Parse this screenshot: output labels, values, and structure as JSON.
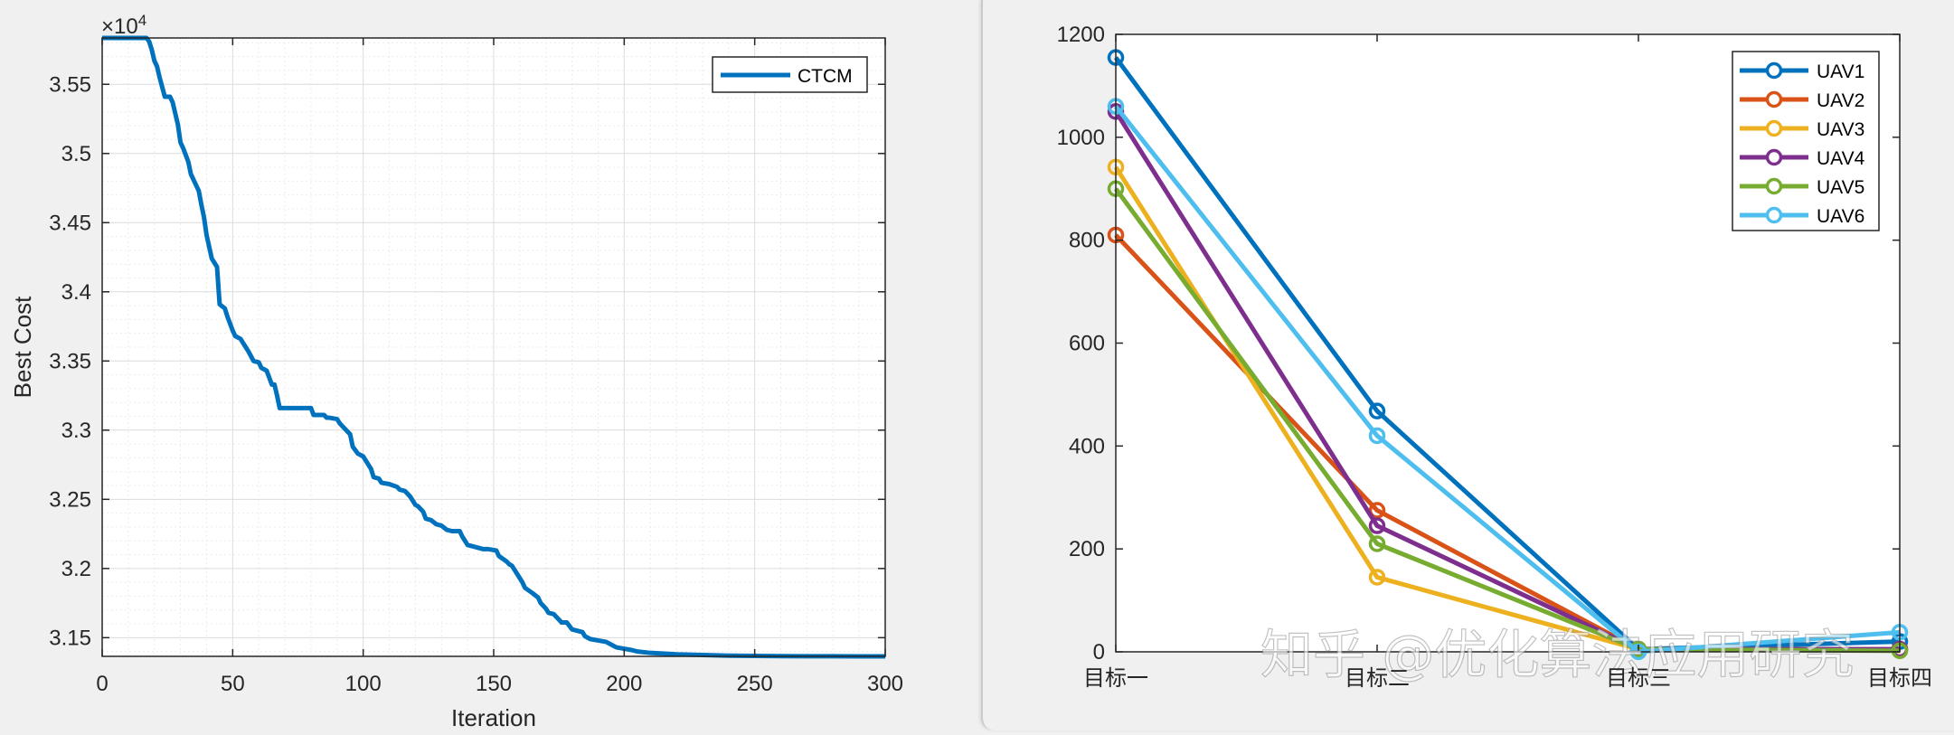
{
  "chart_data": [
    {
      "type": "line",
      "title": "",
      "xlabel": "Iteration",
      "ylabel": "Best Cost",
      "y_exponent_label": "×10",
      "y_exponent_power": "4",
      "xlim": [
        0,
        300
      ],
      "ylim": [
        3.1365,
        3.5835
      ],
      "x_ticks": [
        0,
        50,
        100,
        150,
        200,
        250,
        300
      ],
      "x_tick_labels": [
        "0",
        "50",
        "100",
        "150",
        "200",
        "250",
        "300"
      ],
      "y_ticks": [
        3.15,
        3.2,
        3.25,
        3.3,
        3.35,
        3.4,
        3.45,
        3.5,
        3.55
      ],
      "y_tick_labels": [
        "3.15",
        "3.2",
        "3.25",
        "3.3",
        "3.35",
        "3.4",
        "3.45",
        "3.5",
        "3.55"
      ],
      "grid": true,
      "minor_grid": true,
      "legend_position": "top-right",
      "series": [
        {
          "name": "CTCM",
          "color": "#0072BD",
          "x": [
            0,
            17,
            18,
            19,
            20,
            21,
            22,
            23,
            24,
            26,
            27,
            29,
            30,
            31,
            33,
            34,
            36,
            37,
            38,
            39,
            40,
            42,
            44,
            45,
            47,
            48,
            50,
            51,
            53,
            55,
            56,
            58,
            60,
            61,
            63,
            64,
            65,
            66,
            67,
            68,
            72,
            75,
            80,
            81,
            85,
            86,
            87,
            90,
            91,
            93,
            95,
            96,
            98,
            100,
            101,
            103,
            104,
            106,
            107,
            110,
            113,
            114,
            116,
            118,
            120,
            121,
            123,
            124,
            126,
            128,
            130,
            132,
            134,
            137,
            138,
            140,
            142,
            146,
            148,
            151,
            152,
            155,
            156,
            157,
            159,
            161,
            162,
            165,
            167,
            168,
            170,
            171,
            173,
            175,
            176,
            178,
            180,
            184,
            185,
            187,
            190,
            193,
            194,
            197,
            200,
            203,
            205,
            210,
            220,
            230,
            240,
            250,
            260,
            270,
            280,
            290,
            300
          ],
          "y": [
            3.5835,
            3.5835,
            3.581,
            3.575,
            3.567,
            3.563,
            3.555,
            3.548,
            3.541,
            3.541,
            3.537,
            3.521,
            3.508,
            3.504,
            3.494,
            3.485,
            3.477,
            3.473,
            3.463,
            3.454,
            3.441,
            3.424,
            3.418,
            3.391,
            3.388,
            3.382,
            3.372,
            3.368,
            3.366,
            3.36,
            3.357,
            3.35,
            3.349,
            3.345,
            3.343,
            3.338,
            3.333,
            3.333,
            3.325,
            3.316,
            3.316,
            3.316,
            3.316,
            3.311,
            3.311,
            3.309,
            3.309,
            3.308,
            3.305,
            3.301,
            3.297,
            3.288,
            3.283,
            3.281,
            3.278,
            3.272,
            3.266,
            3.265,
            3.262,
            3.261,
            3.259,
            3.257,
            3.256,
            3.252,
            3.246,
            3.245,
            3.241,
            3.236,
            3.235,
            3.232,
            3.231,
            3.228,
            3.227,
            3.227,
            3.223,
            3.217,
            3.216,
            3.214,
            3.214,
            3.213,
            3.209,
            3.205,
            3.203,
            3.202,
            3.196,
            3.19,
            3.186,
            3.182,
            3.179,
            3.175,
            3.171,
            3.168,
            3.167,
            3.163,
            3.161,
            3.161,
            3.156,
            3.154,
            3.151,
            3.149,
            3.148,
            3.147,
            3.146,
            3.143,
            3.142,
            3.141,
            3.14,
            3.139,
            3.138,
            3.1375,
            3.137,
            3.1368,
            3.1367,
            3.1366,
            3.1366,
            3.1365,
            3.1365
          ]
        }
      ]
    },
    {
      "type": "line",
      "title": "",
      "xlabel": "",
      "ylabel": "",
      "categories": [
        "目标一",
        "目标二",
        "目标三",
        "目标四"
      ],
      "ylim": [
        0,
        1200
      ],
      "y_ticks": [
        0,
        200,
        400,
        600,
        800,
        1000,
        1200
      ],
      "y_tick_labels": [
        "0",
        "200",
        "400",
        "600",
        "800",
        "1000",
        "1200"
      ],
      "grid": false,
      "legend_position": "top-right",
      "markers": "circle",
      "series": [
        {
          "name": "UAV1",
          "color": "#0072BD",
          "values": [
            1155,
            468,
            5,
            20
          ]
        },
        {
          "name": "UAV2",
          "color": "#D95319",
          "values": [
            810,
            275,
            5,
            5
          ]
        },
        {
          "name": "UAV3",
          "color": "#EDB120",
          "values": [
            942,
            145,
            5,
            5
          ]
        },
        {
          "name": "UAV4",
          "color": "#7E2F8E",
          "values": [
            1050,
            245,
            5,
            5
          ]
        },
        {
          "name": "UAV5",
          "color": "#77AC30",
          "values": [
            900,
            210,
            5,
            2
          ]
        },
        {
          "name": "UAV6",
          "color": "#4DBEEE",
          "values": [
            1060,
            420,
            0,
            38
          ]
        }
      ]
    }
  ],
  "watermark": "知乎 @优化算法应用研究"
}
